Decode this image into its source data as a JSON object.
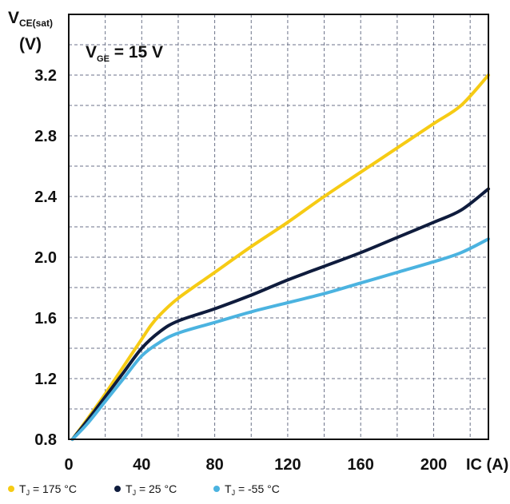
{
  "chart_data": {
    "type": "line",
    "ylabel": {
      "main": "V",
      "sub": "CE(sat)",
      "unit": "(V)"
    },
    "xlabel": "IC (A)",
    "annotation": {
      "main": "V",
      "sub": "GE",
      "rest": " = 15 V"
    },
    "x_ticks": [
      "0",
      "40",
      "80",
      "120",
      "160",
      "200"
    ],
    "y_ticks": [
      "0.8",
      "1.2",
      "1.6",
      "2.0",
      "2.4",
      "2.8",
      "3.2"
    ],
    "xlim": [
      0,
      230
    ],
    "ylim": [
      0.8,
      3.6
    ],
    "grid": true,
    "legend_position": "bottom",
    "series": [
      {
        "legend": {
          "pre": "T",
          "sub": "J",
          "post": " = 175 °C"
        },
        "color": "#F6CB14",
        "points": [
          [
            2,
            0.8
          ],
          [
            10,
            0.93
          ],
          [
            20,
            1.1
          ],
          [
            30,
            1.28
          ],
          [
            40,
            1.46
          ],
          [
            45,
            1.55
          ],
          [
            50,
            1.62
          ],
          [
            60,
            1.73
          ],
          [
            80,
            1.9
          ],
          [
            100,
            2.07
          ],
          [
            120,
            2.23
          ],
          [
            140,
            2.4
          ],
          [
            160,
            2.56
          ],
          [
            180,
            2.72
          ],
          [
            200,
            2.88
          ],
          [
            215,
            3.0
          ],
          [
            230,
            3.2
          ]
        ]
      },
      {
        "legend": {
          "pre": "T",
          "sub": "J",
          "post": " = 25 °C"
        },
        "color": "#0F1C3D",
        "points": [
          [
            2,
            0.8
          ],
          [
            10,
            0.92
          ],
          [
            20,
            1.08
          ],
          [
            30,
            1.24
          ],
          [
            40,
            1.4
          ],
          [
            50,
            1.51
          ],
          [
            60,
            1.58
          ],
          [
            80,
            1.66
          ],
          [
            100,
            1.75
          ],
          [
            120,
            1.85
          ],
          [
            140,
            1.94
          ],
          [
            160,
            2.03
          ],
          [
            180,
            2.13
          ],
          [
            200,
            2.23
          ],
          [
            215,
            2.31
          ],
          [
            230,
            2.45
          ]
        ]
      },
      {
        "legend": {
          "pre": "T",
          "sub": "J",
          "post": " = -55 °C"
        },
        "color": "#4BB3E0",
        "points": [
          [
            2,
            0.8
          ],
          [
            10,
            0.9
          ],
          [
            20,
            1.05
          ],
          [
            30,
            1.2
          ],
          [
            40,
            1.35
          ],
          [
            50,
            1.44
          ],
          [
            60,
            1.5
          ],
          [
            80,
            1.57
          ],
          [
            100,
            1.64
          ],
          [
            120,
            1.7
          ],
          [
            140,
            1.76
          ],
          [
            160,
            1.83
          ],
          [
            180,
            1.9
          ],
          [
            200,
            1.97
          ],
          [
            215,
            2.03
          ],
          [
            230,
            2.12
          ]
        ]
      }
    ]
  }
}
